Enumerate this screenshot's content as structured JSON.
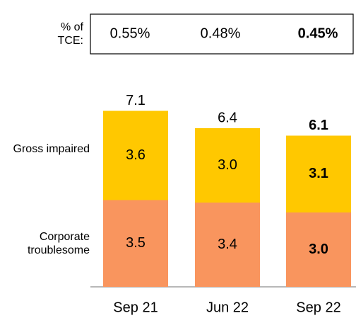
{
  "chart_data": {
    "type": "stacked_bar",
    "categories": [
      "Sep 21",
      "Jun 22",
      "Sep 22"
    ],
    "series": [
      {
        "name": "Corporate troublesome",
        "color": "#f9955e",
        "values": [
          3.5,
          3.4,
          3.0
        ],
        "value_labels": [
          "3.5",
          "3.4",
          "3.0"
        ]
      },
      {
        "name": "Gross impaired",
        "color": "#ffc800",
        "values": [
          3.6,
          3.0,
          3.1
        ],
        "value_labels": [
          "3.6",
          "3.0",
          "3.1"
        ]
      }
    ],
    "totals": [
      7.1,
      6.4,
      6.1
    ],
    "tce": {
      "label": "% of TCE:",
      "values": [
        0.55,
        0.48,
        0.45
      ],
      "value_labels": [
        "0.55%",
        "0.48%",
        "0.45%"
      ]
    }
  }
}
